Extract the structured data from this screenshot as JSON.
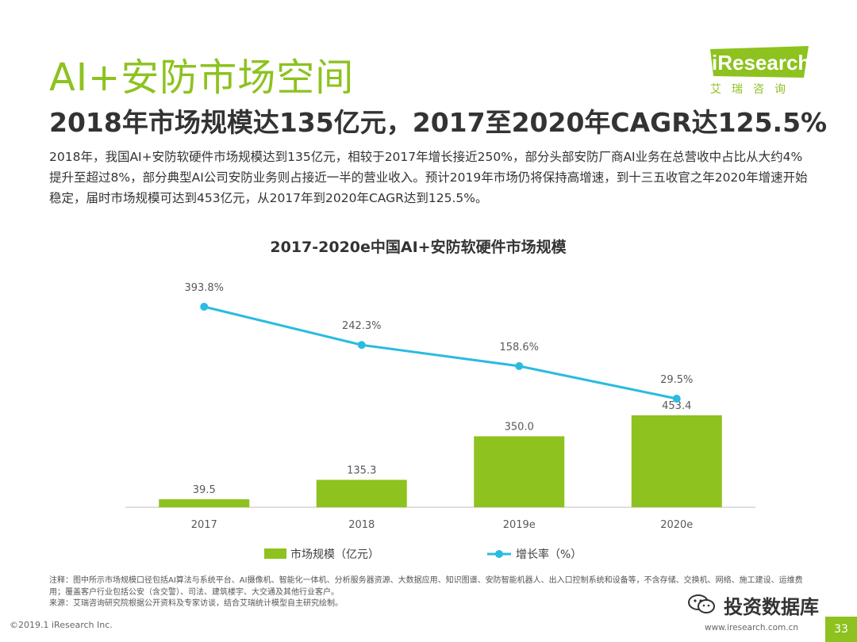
{
  "slide": {
    "title": "AI+安防市场空间",
    "subtitle": "2018年市场规模达135亿元，2017至2020年CAGR达125.5%",
    "body": "2018年，我国AI+安防软硬件市场规模达到135亿元，相较于2017年增长接近250%，部分头部安防厂商AI业务在总营收中占比从大约4%提升至超过8%，部分典型AI公司安防业务则占接近一半的营业收入。预计2019年市场仍将保持高增速，到十三五收官之年2020年增速开始稳定，届时市场规模可达到453亿元，从2017年到2020年CAGR达到125.5%。",
    "page_number": "33"
  },
  "logo": {
    "name": "iResearch",
    "sub": "艾瑞咨询"
  },
  "chart_data": {
    "type": "bar",
    "title": "2017-2020e中国AI+安防软硬件市场规模",
    "categories": [
      "2017",
      "2018",
      "2019e",
      "2020e"
    ],
    "series": [
      {
        "name": "市场规模（亿元）",
        "type": "bar",
        "values": [
          39.5,
          135.3,
          350.0,
          453.4
        ],
        "labels": [
          "39.5",
          "135.3",
          "350.0",
          "453.4"
        ]
      },
      {
        "name": "增长率（%）",
        "type": "line",
        "values": [
          393.8,
          242.3,
          158.6,
          29.5
        ],
        "labels": [
          "393.8%",
          "242.3%",
          "158.6%",
          "29.5%"
        ]
      }
    ],
    "xlabel": "",
    "ylabel": "",
    "legend_position": "bottom"
  },
  "notes": {
    "note": "注释：图中所示市场规模口径包括AI算法与系统平台、AI摄像机、智能化一体机、分析服务器资源、大数据应用、知识图谱、安防智能机器人、出入口控制系统和设备等，不含存储、交换机、网络、施工建设、运维费用；覆盖客户行业包括公安（含交警）、司法、建筑楼宇、大交通及其他行业客户。",
    "source": "来源：艾瑞咨询研究院根据公开资料及专家访谈，结合艾瑞统计模型自主研究绘制。"
  },
  "footer": {
    "copyright": "©2019.1 iResearch Inc.",
    "url": "www.iresearch.com.cn"
  },
  "watermark": {
    "text": "投资数据库"
  },
  "colors": {
    "accent": "#8dc21f",
    "bar": "#8dc21f",
    "line": "#2bbbe0",
    "axis": "#bfbfbf"
  }
}
